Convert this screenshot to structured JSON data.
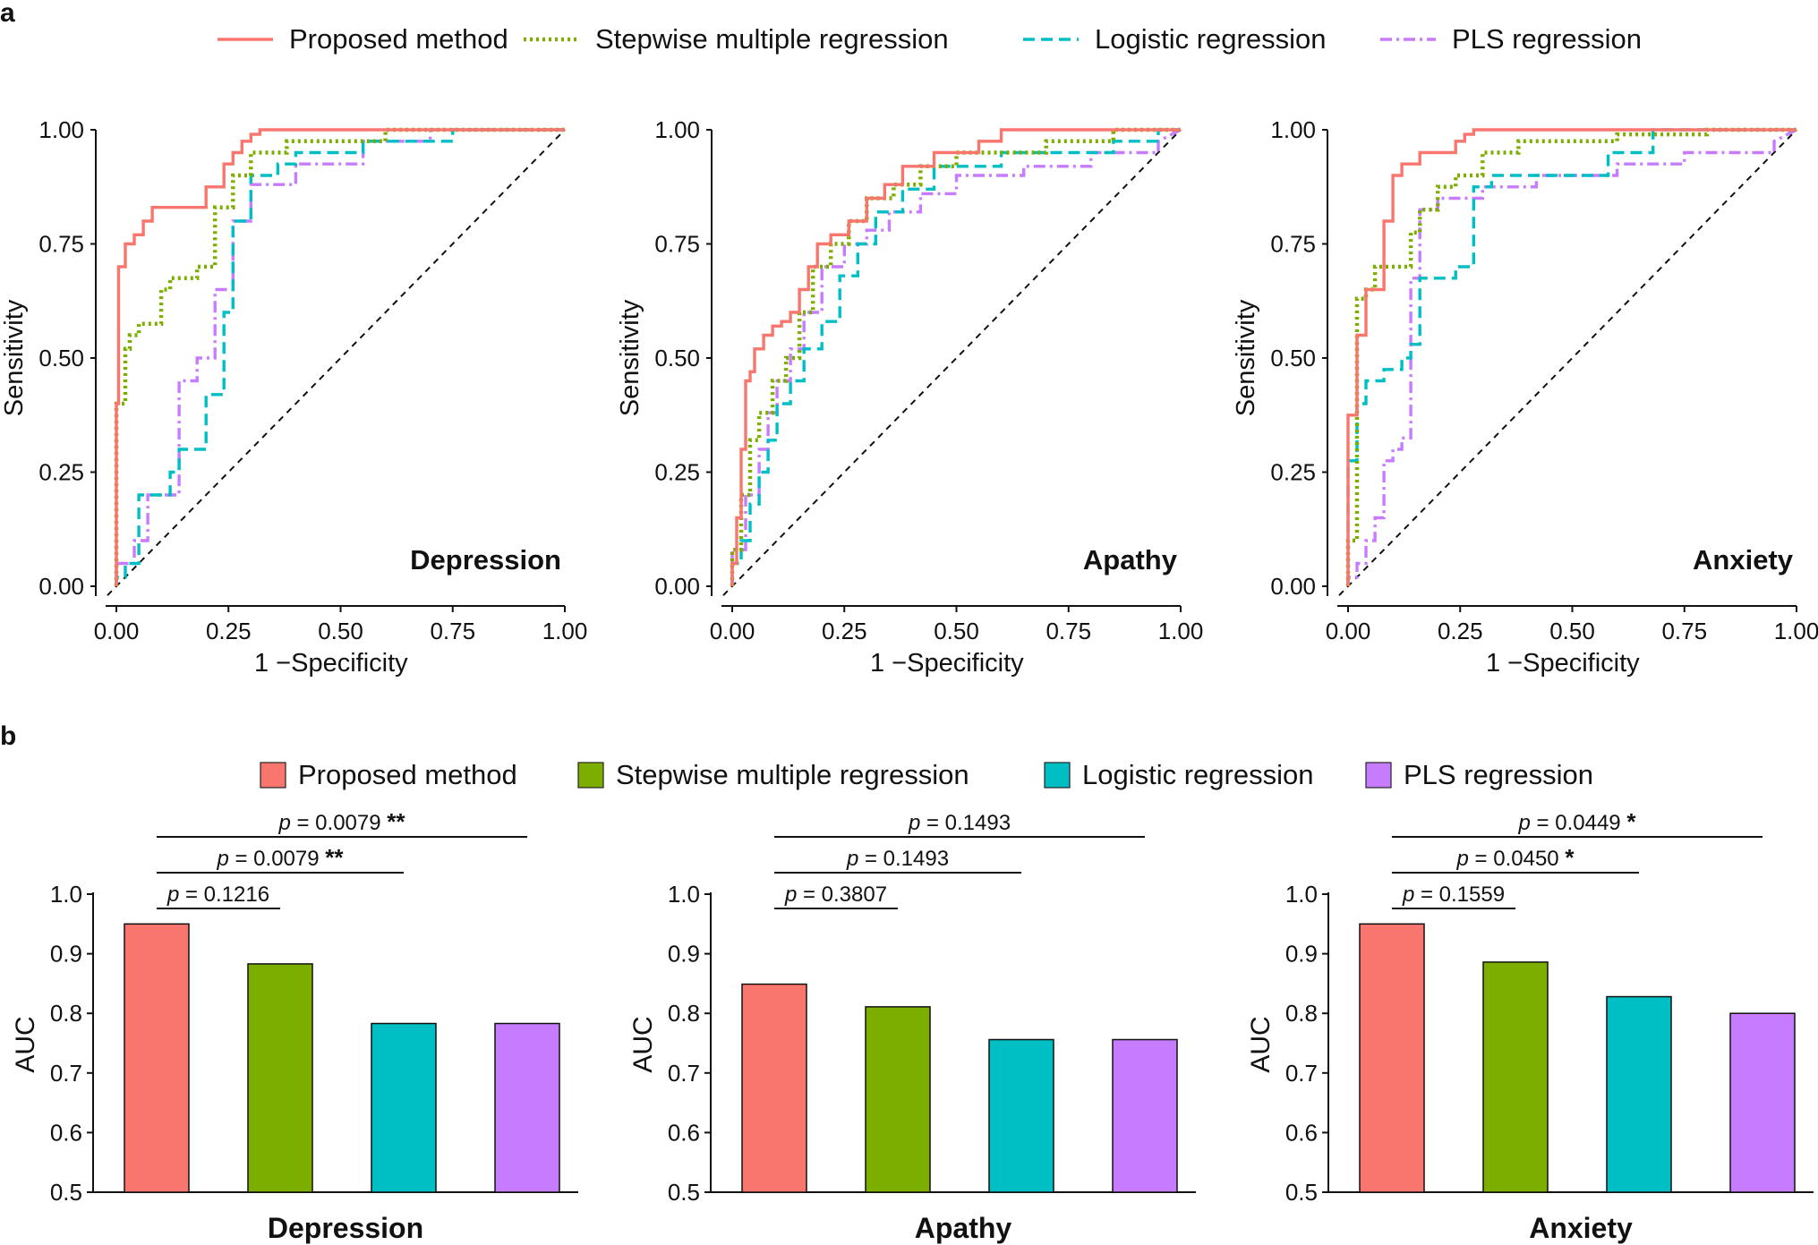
{
  "panels": {
    "a_label": "a",
    "b_label": "b"
  },
  "colors": {
    "proposed": "#F8766D",
    "stepwise": "#7CAE00",
    "logistic": "#00BFC4",
    "pls": "#C77CFF"
  },
  "legend_a": [
    {
      "name": "Proposed method",
      "style": "solid",
      "color": "#F8766D"
    },
    {
      "name": "Stepwise multiple regression",
      "style": "dotted",
      "color": "#7CAE00"
    },
    {
      "name": "Logistic regression",
      "style": "dashed",
      "color": "#00BFC4"
    },
    {
      "name": "PLS regression",
      "style": "dashdot",
      "color": "#C77CFF"
    }
  ],
  "legend_b": [
    {
      "name": "Proposed method",
      "color": "#F8766D"
    },
    {
      "name": "Stepwise multiple regression",
      "color": "#7CAE00"
    },
    {
      "name": "Logistic regression",
      "color": "#00BFC4"
    },
    {
      "name": "PLS regression",
      "color": "#C77CFF"
    }
  ],
  "chart_data": [
    {
      "type": "line",
      "title": "Depression",
      "xlabel": "1 −Specificity",
      "ylabel": "Sensitivity",
      "xlim": [
        0,
        1
      ],
      "ylim": [
        0,
        1
      ],
      "ticks": [
        "0.00",
        "0.25",
        "0.50",
        "0.75",
        "1.00"
      ],
      "series": [
        {
          "name": "Proposed method",
          "x": [
            0,
            0,
            0.005,
            0.005,
            0.02,
            0.02,
            0.04,
            0.04,
            0.06,
            0.06,
            0.08,
            0.08,
            0.2,
            0.2,
            0.24,
            0.24,
            0.26,
            0.26,
            0.28,
            0.28,
            0.3,
            0.3,
            0.32,
            0.32,
            1
          ],
          "y": [
            0,
            0.4,
            0.4,
            0.7,
            0.7,
            0.75,
            0.75,
            0.77,
            0.77,
            0.8,
            0.8,
            0.83,
            0.83,
            0.875,
            0.875,
            0.925,
            0.925,
            0.95,
            0.95,
            0.975,
            0.975,
            0.99,
            0.99,
            1,
            1
          ]
        },
        {
          "name": "Stepwise multiple regression",
          "x": [
            0,
            0,
            0.01,
            0.01,
            0.02,
            0.02,
            0.03,
            0.03,
            0.05,
            0.05,
            0.07,
            0.07,
            0.1,
            0.1,
            0.12,
            0.12,
            0.18,
            0.18,
            0.22,
            0.22,
            0.26,
            0.26,
            0.3,
            0.3,
            0.38,
            0.38,
            0.6,
            0.6,
            1
          ],
          "y": [
            0,
            0.4,
            0.4,
            0.4,
            0.4,
            0.52,
            0.52,
            0.55,
            0.55,
            0.575,
            0.575,
            0.575,
            0.575,
            0.65,
            0.65,
            0.675,
            0.675,
            0.7,
            0.7,
            0.83,
            0.83,
            0.9,
            0.9,
            0.95,
            0.95,
            0.975,
            0.975,
            1,
            1
          ]
        },
        {
          "name": "Logistic regression",
          "x": [
            0,
            0,
            0.02,
            0.02,
            0.05,
            0.05,
            0.12,
            0.12,
            0.14,
            0.14,
            0.2,
            0.2,
            0.24,
            0.24,
            0.26,
            0.26,
            0.3,
            0.3,
            0.36,
            0.36,
            0.4,
            0.4,
            0.55,
            0.55,
            0.75,
            0.75,
            1
          ],
          "y": [
            0,
            0.02,
            0.02,
            0.05,
            0.05,
            0.2,
            0.2,
            0.25,
            0.25,
            0.3,
            0.3,
            0.42,
            0.42,
            0.6,
            0.6,
            0.8,
            0.8,
            0.9,
            0.9,
            0.925,
            0.925,
            0.95,
            0.95,
            0.975,
            0.975,
            1,
            1
          ]
        },
        {
          "name": "PLS regression",
          "x": [
            0,
            0,
            0.04,
            0.04,
            0.07,
            0.07,
            0.14,
            0.14,
            0.18,
            0.18,
            0.22,
            0.22,
            0.26,
            0.26,
            0.3,
            0.3,
            0.4,
            0.4,
            0.55,
            0.55,
            0.7,
            0.7,
            1
          ],
          "y": [
            0,
            0.05,
            0.05,
            0.1,
            0.1,
            0.2,
            0.2,
            0.45,
            0.45,
            0.5,
            0.5,
            0.65,
            0.65,
            0.8,
            0.8,
            0.88,
            0.88,
            0.925,
            0.925,
            0.975,
            0.975,
            1,
            1
          ]
        }
      ]
    },
    {
      "type": "line",
      "title": "Apathy",
      "xlabel": "1 −Specificity",
      "ylabel": "Sensitivity",
      "xlim": [
        0,
        1
      ],
      "ylim": [
        0,
        1
      ],
      "ticks": [
        "0.00",
        "0.25",
        "0.50",
        "0.75",
        "1.00"
      ],
      "series": [
        {
          "name": "Proposed method",
          "x": [
            0,
            0,
            0.01,
            0.01,
            0.02,
            0.02,
            0.03,
            0.03,
            0.04,
            0.04,
            0.05,
            0.05,
            0.07,
            0.07,
            0.09,
            0.09,
            0.11,
            0.11,
            0.13,
            0.13,
            0.15,
            0.15,
            0.17,
            0.17,
            0.19,
            0.19,
            0.22,
            0.22,
            0.26,
            0.26,
            0.3,
            0.3,
            0.34,
            0.34,
            0.38,
            0.38,
            0.45,
            0.45,
            0.55,
            0.55,
            0.6,
            0.6,
            1
          ],
          "y": [
            0,
            0.05,
            0.05,
            0.15,
            0.15,
            0.3,
            0.3,
            0.45,
            0.45,
            0.47,
            0.47,
            0.52,
            0.52,
            0.55,
            0.55,
            0.57,
            0.57,
            0.58,
            0.58,
            0.6,
            0.6,
            0.65,
            0.65,
            0.7,
            0.7,
            0.75,
            0.75,
            0.77,
            0.77,
            0.8,
            0.8,
            0.85,
            0.85,
            0.88,
            0.88,
            0.92,
            0.92,
            0.95,
            0.95,
            0.975,
            0.975,
            1,
            1
          ]
        },
        {
          "name": "Stepwise multiple regression",
          "x": [
            0,
            0,
            0.02,
            0.02,
            0.04,
            0.04,
            0.06,
            0.06,
            0.09,
            0.09,
            0.12,
            0.12,
            0.15,
            0.15,
            0.18,
            0.18,
            0.22,
            0.22,
            0.26,
            0.26,
            0.3,
            0.3,
            0.36,
            0.36,
            0.42,
            0.42,
            0.5,
            0.5,
            0.7,
            0.7,
            0.85,
            0.85,
            1
          ],
          "y": [
            0,
            0.08,
            0.08,
            0.2,
            0.2,
            0.32,
            0.32,
            0.38,
            0.38,
            0.45,
            0.45,
            0.5,
            0.5,
            0.6,
            0.6,
            0.7,
            0.7,
            0.75,
            0.75,
            0.8,
            0.8,
            0.85,
            0.85,
            0.88,
            0.88,
            0.92,
            0.92,
            0.95,
            0.95,
            0.975,
            0.975,
            1,
            1
          ]
        },
        {
          "name": "Logistic regression",
          "x": [
            0,
            0,
            0.02,
            0.02,
            0.04,
            0.04,
            0.06,
            0.06,
            0.08,
            0.08,
            0.1,
            0.1,
            0.13,
            0.13,
            0.16,
            0.16,
            0.2,
            0.2,
            0.24,
            0.24,
            0.28,
            0.28,
            0.32,
            0.32,
            0.38,
            0.38,
            0.45,
            0.45,
            0.6,
            0.6,
            0.85,
            0.85,
            0.95,
            0.95,
            1
          ],
          "y": [
            0,
            0.05,
            0.05,
            0.1,
            0.1,
            0.18,
            0.18,
            0.25,
            0.25,
            0.32,
            0.32,
            0.4,
            0.4,
            0.45,
            0.45,
            0.52,
            0.52,
            0.58,
            0.58,
            0.68,
            0.68,
            0.75,
            0.75,
            0.82,
            0.82,
            0.87,
            0.87,
            0.92,
            0.92,
            0.95,
            0.95,
            0.975,
            0.975,
            1,
            1
          ]
        },
        {
          "name": "PLS regression",
          "x": [
            0,
            0,
            0.03,
            0.03,
            0.06,
            0.06,
            0.08,
            0.08,
            0.1,
            0.1,
            0.13,
            0.13,
            0.16,
            0.16,
            0.2,
            0.2,
            0.25,
            0.25,
            0.3,
            0.3,
            0.35,
            0.35,
            0.42,
            0.42,
            0.5,
            0.5,
            0.65,
            0.65,
            0.8,
            0.8,
            0.95,
            0.95,
            1
          ],
          "y": [
            0,
            0.08,
            0.08,
            0.2,
            0.2,
            0.3,
            0.3,
            0.38,
            0.38,
            0.45,
            0.45,
            0.52,
            0.52,
            0.6,
            0.6,
            0.7,
            0.7,
            0.75,
            0.75,
            0.78,
            0.78,
            0.82,
            0.82,
            0.86,
            0.86,
            0.9,
            0.9,
            0.92,
            0.92,
            0.95,
            0.95,
            0.975,
            1
          ]
        }
      ]
    },
    {
      "type": "line",
      "title": "Anxiety",
      "xlabel": "1 −Specificity",
      "ylabel": "Sensitivity",
      "xlim": [
        0,
        1
      ],
      "ylim": [
        0,
        1
      ],
      "ticks": [
        "0.00",
        "0.25",
        "0.50",
        "0.75",
        "1.00"
      ],
      "series": [
        {
          "name": "Proposed method",
          "x": [
            0,
            0,
            0.02,
            0.02,
            0.04,
            0.04,
            0.06,
            0.06,
            0.08,
            0.08,
            0.1,
            0.1,
            0.12,
            0.12,
            0.16,
            0.16,
            0.2,
            0.2,
            0.24,
            0.24,
            0.26,
            0.26,
            0.28,
            0.28,
            1
          ],
          "y": [
            0,
            0.375,
            0.375,
            0.55,
            0.55,
            0.65,
            0.65,
            0.65,
            0.65,
            0.8,
            0.8,
            0.9,
            0.9,
            0.925,
            0.925,
            0.95,
            0.95,
            0.95,
            0.95,
            0.975,
            0.975,
            0.99,
            0.99,
            1,
            1
          ]
        },
        {
          "name": "Stepwise multiple regression",
          "x": [
            0,
            0,
            0.02,
            0.02,
            0.04,
            0.04,
            0.06,
            0.06,
            0.1,
            0.1,
            0.14,
            0.14,
            0.16,
            0.16,
            0.2,
            0.2,
            0.24,
            0.24,
            0.3,
            0.3,
            0.38,
            0.38,
            0.45,
            0.45,
            0.6,
            0.6,
            0.8,
            0.8,
            1
          ],
          "y": [
            0,
            0.1,
            0.1,
            0.63,
            0.63,
            0.65,
            0.65,
            0.7,
            0.7,
            0.7,
            0.7,
            0.775,
            0.775,
            0.825,
            0.825,
            0.875,
            0.875,
            0.9,
            0.9,
            0.95,
            0.95,
            0.975,
            0.975,
            0.975,
            0.975,
            0.99,
            0.99,
            1,
            1
          ]
        },
        {
          "name": "Logistic regression",
          "x": [
            0,
            0,
            0.02,
            0.02,
            0.04,
            0.04,
            0.08,
            0.08,
            0.12,
            0.12,
            0.14,
            0.14,
            0.16,
            0.16,
            0.24,
            0.24,
            0.28,
            0.28,
            0.32,
            0.32,
            0.58,
            0.58,
            0.68,
            0.68,
            1
          ],
          "y": [
            0,
            0.275,
            0.275,
            0.4,
            0.4,
            0.45,
            0.45,
            0.475,
            0.475,
            0.5,
            0.5,
            0.53,
            0.53,
            0.675,
            0.675,
            0.7,
            0.7,
            0.875,
            0.875,
            0.9,
            0.9,
            0.95,
            0.95,
            1,
            1
          ]
        },
        {
          "name": "PLS regression",
          "x": [
            0,
            0,
            0.02,
            0.02,
            0.04,
            0.04,
            0.06,
            0.06,
            0.08,
            0.08,
            0.1,
            0.1,
            0.12,
            0.12,
            0.14,
            0.14,
            0.16,
            0.16,
            0.2,
            0.2,
            0.3,
            0.3,
            0.42,
            0.42,
            0.6,
            0.6,
            0.75,
            0.75,
            0.95,
            0.95,
            1
          ],
          "y": [
            0,
            0.02,
            0.02,
            0.05,
            0.05,
            0.1,
            0.1,
            0.15,
            0.15,
            0.275,
            0.275,
            0.3,
            0.3,
            0.325,
            0.325,
            0.675,
            0.675,
            0.825,
            0.825,
            0.85,
            0.85,
            0.875,
            0.875,
            0.9,
            0.9,
            0.925,
            0.925,
            0.95,
            0.95,
            0.975,
            1
          ]
        }
      ]
    },
    {
      "type": "bar",
      "title": "Depression",
      "ylabel": "AUC",
      "ylim": [
        0.5,
        1.0
      ],
      "yticks": [
        "0.5",
        "0.6",
        "0.7",
        "0.8",
        "0.9",
        "1.0"
      ],
      "categories": [
        "Proposed method",
        "Stepwise multiple regression",
        "Logistic regression",
        "PLS regression"
      ],
      "values": [
        0.95,
        0.883,
        0.783,
        0.783
      ],
      "comparisons": [
        {
          "text": "p = 0.1216",
          "p_label": "p",
          "value": " = 0.1216",
          "stars": "",
          "from": 0,
          "to": 1
        },
        {
          "text": "p = 0.0079 **",
          "p_label": "p",
          "value": " = 0.0079 ",
          "stars": "**",
          "from": 0,
          "to": 2
        },
        {
          "text": "p = 0.0079 **",
          "p_label": "p",
          "value": " = 0.0079 ",
          "stars": "**",
          "from": 0,
          "to": 3
        }
      ]
    },
    {
      "type": "bar",
      "title": "Apathy",
      "ylabel": "AUC",
      "ylim": [
        0.5,
        1.0
      ],
      "yticks": [
        "0.5",
        "0.6",
        "0.7",
        "0.8",
        "0.9",
        "1.0"
      ],
      "categories": [
        "Proposed method",
        "Stepwise multiple regression",
        "Logistic regression",
        "PLS regression"
      ],
      "values": [
        0.849,
        0.811,
        0.756,
        0.756
      ],
      "comparisons": [
        {
          "text": "p = 0.3807",
          "p_label": "p",
          "value": " = 0.3807",
          "stars": "",
          "from": 0,
          "to": 1
        },
        {
          "text": "p = 0.1493",
          "p_label": "p",
          "value": " = 0.1493",
          "stars": "",
          "from": 0,
          "to": 2
        },
        {
          "text": "p = 0.1493",
          "p_label": "p",
          "value": " = 0.1493",
          "stars": "",
          "from": 0,
          "to": 3
        }
      ]
    },
    {
      "type": "bar",
      "title": "Anxiety",
      "ylabel": "AUC",
      "ylim": [
        0.5,
        1.0
      ],
      "yticks": [
        "0.5",
        "0.6",
        "0.7",
        "0.8",
        "0.9",
        "1.0"
      ],
      "categories": [
        "Proposed method",
        "Stepwise multiple regression",
        "Logistic regression",
        "PLS regression"
      ],
      "values": [
        0.95,
        0.886,
        0.828,
        0.8
      ],
      "comparisons": [
        {
          "text": "p = 0.1559",
          "p_label": "p",
          "value": " = 0.1559",
          "stars": "",
          "from": 0,
          "to": 1
        },
        {
          "text": "p = 0.0450 *",
          "p_label": "p",
          "value": " = 0.0450 ",
          "stars": "*",
          "from": 0,
          "to": 2
        },
        {
          "text": "p = 0.0449 *",
          "p_label": "p",
          "value": " = 0.0449 ",
          "stars": "*",
          "from": 0,
          "to": 3
        }
      ]
    }
  ]
}
